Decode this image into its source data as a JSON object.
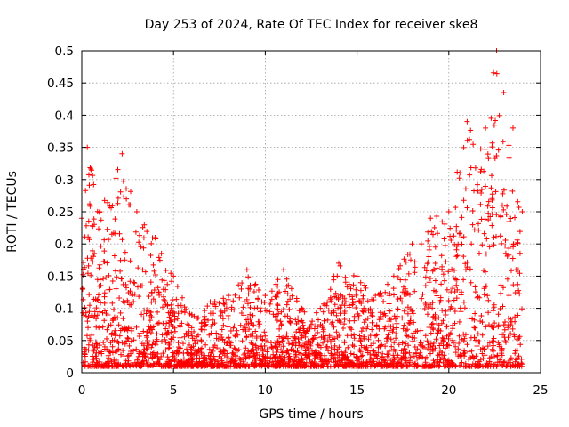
{
  "chart_data": {
    "type": "scatter",
    "title": "Day 253 of 2024, Rate Of TEC Index for receiver ske8",
    "xlabel": "GPS time / hours",
    "ylabel": "ROTI / TECUs",
    "xlim": [
      0,
      25
    ],
    "ylim": [
      0,
      0.5
    ],
    "xticks": [
      "0",
      "5",
      "10",
      "15",
      "20",
      "25"
    ],
    "yticks": [
      "0",
      "0.05",
      "0.1",
      "0.15",
      "0.2",
      "0.25",
      "0.3",
      "0.35",
      "0.4",
      "0.45",
      "0.5"
    ],
    "grid": true,
    "marker": "+",
    "color": "#ff0000",
    "time_range_hours": [
      0,
      24
    ],
    "envelope": [
      {
        "x": 0,
        "y": 0.24
      },
      {
        "x": 0.3,
        "y": 0.35
      },
      {
        "x": 1,
        "y": 0.25
      },
      {
        "x": 2.2,
        "y": 0.34
      },
      {
        "x": 3,
        "y": 0.25
      },
      {
        "x": 4,
        "y": 0.21
      },
      {
        "x": 5,
        "y": 0.15
      },
      {
        "x": 6,
        "y": 0.09
      },
      {
        "x": 7,
        "y": 0.11
      },
      {
        "x": 8,
        "y": 0.12
      },
      {
        "x": 9,
        "y": 0.16
      },
      {
        "x": 10,
        "y": 0.12
      },
      {
        "x": 11,
        "y": 0.16
      },
      {
        "x": 12,
        "y": 0.1
      },
      {
        "x": 13,
        "y": 0.1
      },
      {
        "x": 14,
        "y": 0.17
      },
      {
        "x": 15,
        "y": 0.15
      },
      {
        "x": 16,
        "y": 0.12
      },
      {
        "x": 17,
        "y": 0.15
      },
      {
        "x": 18,
        "y": 0.2
      },
      {
        "x": 19,
        "y": 0.24
      },
      {
        "x": 20,
        "y": 0.25
      },
      {
        "x": 21,
        "y": 0.39
      },
      {
        "x": 22,
        "y": 0.38
      },
      {
        "x": 22.6,
        "y": 0.5
      },
      {
        "x": 23.5,
        "y": 0.38
      },
      {
        "x": 24,
        "y": 0.25
      }
    ]
  }
}
